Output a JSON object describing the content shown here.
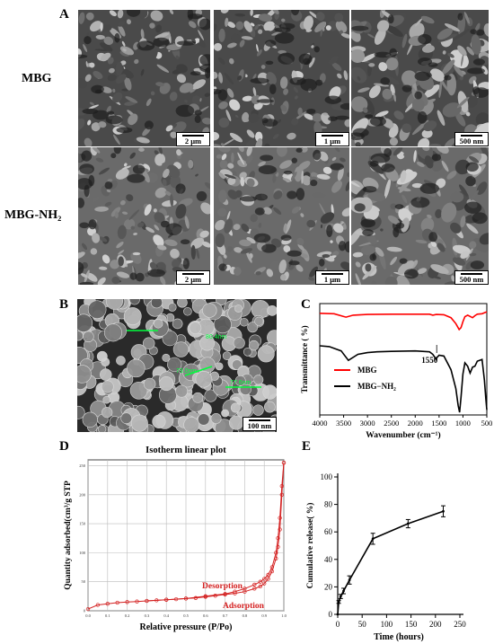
{
  "figure": {
    "panel_labels": {
      "A": "A",
      "B": "B",
      "C": "C",
      "D": "D",
      "E": "E"
    },
    "panel_a": {
      "rows": [
        {
          "label": "MBG",
          "scale_bars": [
            "2 μm",
            "1 μm",
            "500 nm"
          ]
        },
        {
          "label": "MBG-NH₂",
          "scale_bars": [
            "2 μm",
            "1 μm",
            "500 nm"
          ]
        }
      ]
    },
    "panel_b": {
      "scale_bar": "100 nm",
      "measurements": [
        "80.4nm",
        "73.0nm",
        "77.6nm"
      ],
      "colors": {
        "measure": "#00ff3c"
      }
    }
  },
  "chart_data": [
    {
      "id": "C",
      "type": "line",
      "xlabel": "Wavenumber (cm⁻¹)",
      "ylabel": "Transmittance ( %)",
      "x_reversed": true,
      "xlim": [
        4000,
        500
      ],
      "xticks": [
        4000,
        3500,
        3000,
        2500,
        2000,
        1500,
        1000,
        500
      ],
      "annotations": [
        {
          "text": "1550",
          "x": 1550
        }
      ],
      "series": [
        {
          "name": "MBG",
          "color": "#ff0000",
          "x": [
            4000,
            3700,
            3450,
            3300,
            3000,
            2500,
            2000,
            1700,
            1630,
            1560,
            1400,
            1250,
            1150,
            1080,
            1040,
            1000,
            960,
            900,
            800,
            750,
            700,
            600,
            500
          ],
          "y": [
            0.95,
            0.94,
            0.87,
            0.91,
            0.925,
            0.93,
            0.93,
            0.93,
            0.91,
            0.925,
            0.92,
            0.86,
            0.74,
            0.62,
            0.66,
            0.78,
            0.88,
            0.91,
            0.86,
            0.9,
            0.93,
            0.94,
            0.98
          ]
        },
        {
          "name": "MBG−NH₂",
          "color": "#000000",
          "x": [
            4000,
            3800,
            3550,
            3400,
            3200,
            3000,
            2800,
            2500,
            2000,
            1700,
            1630,
            1560,
            1550,
            1500,
            1400,
            1250,
            1150,
            1100,
            1070,
            1040,
            1000,
            960,
            900,
            850,
            800,
            750,
            700,
            600,
            550,
            520,
            500
          ],
          "y": [
            0.8,
            0.79,
            0.74,
            0.63,
            0.7,
            0.72,
            0.73,
            0.735,
            0.74,
            0.73,
            0.7,
            0.64,
            0.66,
            0.69,
            0.68,
            0.52,
            0.3,
            0.1,
            0.02,
            0.2,
            0.47,
            0.6,
            0.56,
            0.48,
            0.55,
            0.56,
            0.62,
            0.64,
            0.4,
            0.18,
            0.05
          ]
        }
      ]
    },
    {
      "id": "D",
      "type": "line",
      "title": "Isotherm linear plot",
      "xlabel": "Relative pressure (P/Po)",
      "ylabel": "Quantity adsorbed(cm³/g STP",
      "xlim": [
        0,
        1
      ],
      "ylim": [
        0,
        260
      ],
      "xticks": [
        "0.0",
        "0.1",
        "0.2",
        "0.3",
        "0.4",
        "0.5",
        "0.6",
        "0.7",
        "0.8",
        "0.9",
        "1.0"
      ],
      "yticks": [
        "0",
        "50",
        "100",
        "150",
        "200",
        "250"
      ],
      "annotations": [
        {
          "text": "Desorption"
        },
        {
          "text": "Adsorption"
        }
      ],
      "series": [
        {
          "name": "Adsorption",
          "color": "#d42020",
          "x": [
            0.0,
            0.05,
            0.1,
            0.15,
            0.2,
            0.25,
            0.3,
            0.35,
            0.4,
            0.45,
            0.5,
            0.55,
            0.6,
            0.65,
            0.7,
            0.75,
            0.8,
            0.85,
            0.88,
            0.9,
            0.92,
            0.94,
            0.96,
            0.97,
            0.98,
            0.99,
            1.0
          ],
          "y": [
            3,
            10,
            12,
            14,
            15,
            16,
            17,
            18,
            19,
            20,
            21,
            22,
            24,
            26,
            28,
            30,
            33,
            38,
            42,
            47,
            55,
            68,
            90,
            110,
            140,
            200,
            255
          ]
        },
        {
          "name": "Desorption",
          "color": "#d42020",
          "x": [
            1.0,
            0.99,
            0.98,
            0.97,
            0.96,
            0.94,
            0.92,
            0.9,
            0.88,
            0.85,
            0.8,
            0.75,
            0.7,
            0.6,
            0.5,
            0.4,
            0.3
          ],
          "y": [
            255,
            215,
            160,
            125,
            100,
            75,
            62,
            55,
            50,
            45,
            38,
            33,
            29,
            25,
            21,
            19,
            17
          ]
        }
      ]
    },
    {
      "id": "E",
      "type": "line",
      "xlabel": "Time (hours)",
      "ylabel": "Cumulative release( %)",
      "xlim": [
        0,
        250
      ],
      "ylim": [
        0,
        100
      ],
      "xticks": [
        0,
        50,
        100,
        150,
        200,
        250
      ],
      "yticks": [
        0,
        20,
        40,
        60,
        80,
        100
      ],
      "series": [
        {
          "name": "",
          "color": "#000000",
          "x": [
            0,
            2,
            6,
            12,
            24,
            72,
            144,
            216
          ],
          "y": [
            0,
            9,
            13,
            17,
            25,
            55,
            66,
            75
          ],
          "err": [
            0,
            1,
            1.5,
            2,
            3,
            4,
            3,
            4
          ]
        }
      ]
    }
  ]
}
